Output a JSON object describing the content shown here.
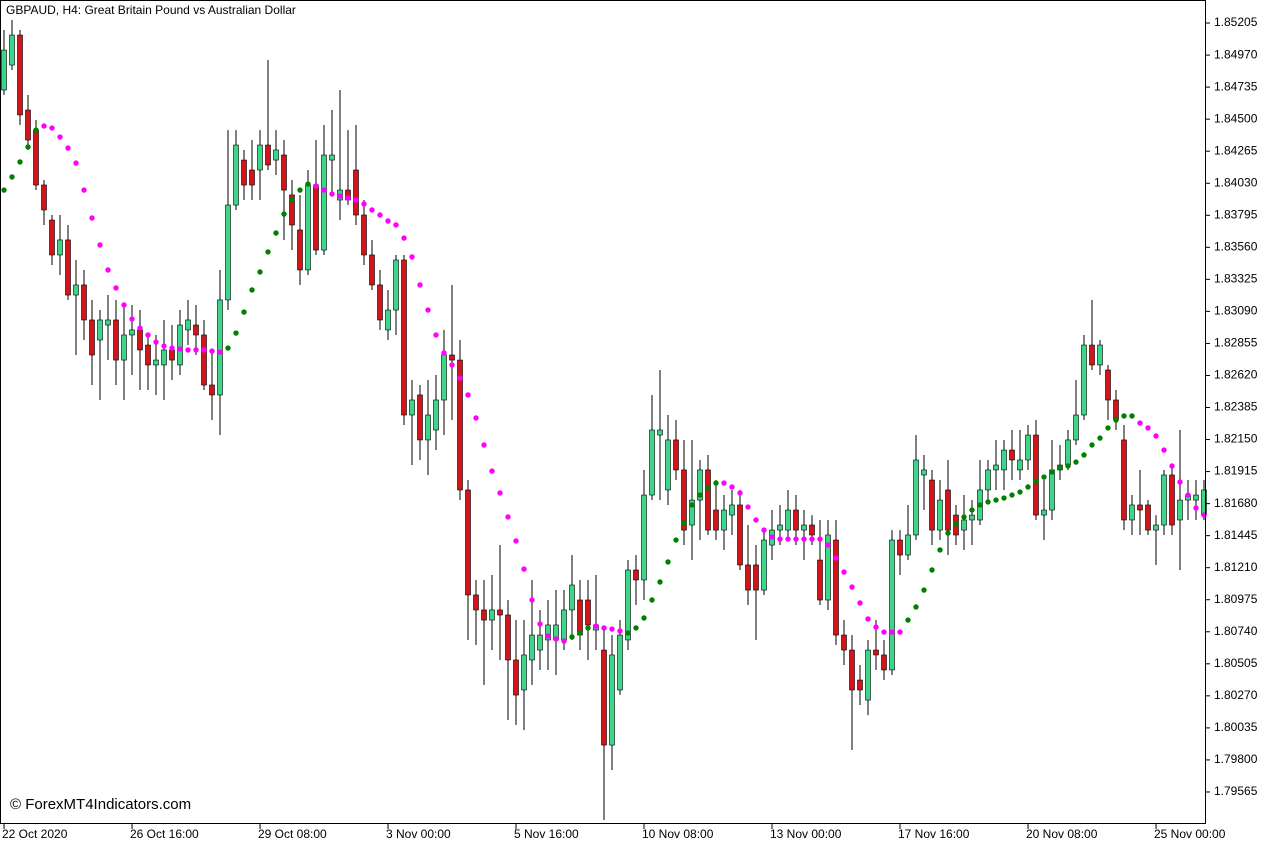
{
  "chart_data": {
    "type": "candlestick",
    "title": "GBPAUD, H4:  Great Britain Pound vs Australian Dollar",
    "watermark": "© ForexMT4Indicators.com",
    "up_color": "#3bd68a",
    "down_color": "#d4141a",
    "grid": false,
    "ylim": [
      1.7933,
      1.85352
    ],
    "yticks": [
      1.85205,
      {
        "value": 1.8497,
        "label": "1.84970"
      },
      1.84735,
      {
        "value": 1.845,
        "label": "1.84500"
      },
      1.84265,
      {
        "value": 1.8403,
        "label": "1.84030"
      },
      1.83795,
      {
        "value": 1.8356,
        "label": "1.83560"
      },
      1.83325,
      {
        "value": 1.8309,
        "label": "1.83090"
      },
      1.82855,
      {
        "value": 1.8262,
        "label": "1.82620"
      },
      1.82385,
      {
        "value": 1.8215,
        "label": "1.82150"
      },
      1.81915,
      {
        "value": 1.8168,
        "label": "1.81680"
      },
      1.81445,
      {
        "value": 1.8121,
        "label": "1.81210"
      },
      1.80975,
      {
        "value": 1.8074,
        "label": "1.80740"
      },
      1.80505,
      {
        "value": 1.8027,
        "label": "1.80270"
      },
      1.80035,
      {
        "value": 1.798,
        "label": "1.79800"
      },
      1.79565
    ],
    "categories": [
      "22 Oct 2020",
      null,
      null,
      null,
      null,
      null,
      null,
      null,
      null,
      null,
      null,
      null,
      null,
      null,
      null,
      null,
      "26 Oct 16:00",
      null,
      null,
      null,
      null,
      null,
      null,
      null,
      null,
      null,
      null,
      null,
      null,
      null,
      null,
      null,
      "29 Oct 08:00",
      null,
      null,
      null,
      null,
      null,
      null,
      null,
      null,
      null,
      null,
      null,
      null,
      null,
      null,
      null,
      "3 Nov 00:00",
      null,
      null,
      null,
      null,
      null,
      null,
      null,
      null,
      null,
      null,
      null,
      null,
      null,
      null,
      null,
      "5 Nov 16:00",
      null,
      null,
      null,
      null,
      null,
      null,
      null,
      null,
      null,
      null,
      null,
      null,
      null,
      null,
      null,
      "10 Nov 08:00",
      null,
      null,
      null,
      null,
      null,
      null,
      null,
      null,
      null,
      null,
      null,
      null,
      null,
      null,
      null,
      "13 Nov 00:00",
      null,
      null,
      null,
      null,
      null,
      null,
      null,
      null,
      null,
      null,
      null,
      null,
      null,
      null,
      null,
      "17 Nov 16:00",
      null,
      null,
      null,
      null,
      null,
      null,
      null,
      null,
      null,
      null,
      null,
      null,
      null,
      null,
      null,
      "20 Nov 08:00",
      null,
      null,
      null,
      null,
      null,
      null,
      null,
      null,
      null,
      null,
      null,
      null,
      null,
      null,
      null,
      "25 Nov 00:00",
      null,
      null,
      null,
      null,
      null,
      null
    ],
    "open": [
      1.84714,
      1.84897,
      1.85117,
      1.84567,
      1.8442,
      1.84017,
      1.8376,
      1.83504,
      1.83614,
      1.8321,
      1.83284,
      1.83027,
      1.8288,
      1.8299,
      1.83027,
      1.82733,
      1.82917,
      1.82954,
      1.82843,
      1.82697,
      1.82697,
      1.82807,
      1.82697,
      1.82954,
      1.8299,
      1.82917,
      1.8255,
      1.82477,
      1.83174,
      1.8387,
      1.842,
      1.84127,
      1.84127,
      1.8431,
      1.842,
      1.84237,
      1.83944,
      1.83687,
      1.83394,
      1.84017,
      1.8354,
      1.842,
      1.83907,
      1.8398,
      1.84127,
      1.83797,
      1.83504,
      1.83284,
      1.82954,
      1.831,
      1.83467,
      1.8233,
      1.82477,
      1.82147,
      1.8222,
      1.8244,
      1.8277,
      1.82733,
      1.8178,
      1.8101,
      1.809,
      1.80826,
      1.809,
      1.80863,
      1.80533,
      1.80313,
      1.80533,
      1.80606,
      1.8068,
      1.8068,
      1.8068,
      1.809,
      1.80973,
      1.80973,
      1.80753,
      1.80606,
      1.79909,
      1.80313,
      1.8068,
      1.81193,
      1.8112,
      1.81743,
      1.82183,
      1.8178,
      1.82147,
      1.81927,
      1.81523,
      1.81706,
      1.81927,
      1.81633,
      1.81486,
      1.81596,
      1.8167,
      1.8123,
      1.8123,
      1.81046,
      1.81376,
      1.81486,
      1.81486,
      1.81633,
      1.81486,
      1.81523,
      1.81266,
      1.80973,
      1.81413,
      1.80716,
      1.80606,
      1.80386,
      1.80239,
      1.80606,
      1.8057,
      1.8046,
      1.81413,
      1.81303,
      1.8145,
      1.8189,
      1.81853,
      1.81486,
      1.8178,
      1.81596,
      1.81486,
      1.8156,
      1.8156,
      1.8178,
      1.81927,
      1.81927,
      1.82073,
      1.81927,
      1.82,
      1.82183,
      1.81596,
      1.81633,
      1.81927,
      1.81963,
      1.82147,
      1.8233,
      1.82843,
      1.82697,
      1.8266,
      1.8244,
      1.82147,
      1.8156,
      1.8167,
      1.8167,
      1.81486,
      1.81523,
      1.8189,
      1.8156,
      1.81706,
      1.81706,
      1.81596
    ],
    "high": [
      1.85154,
      1.85227,
      1.85154,
      1.84677,
      1.84494,
      1.84054,
      1.83797,
      1.83797,
      1.83724,
      1.83467,
      1.83394,
      1.83174,
      1.831,
      1.8321,
      1.83174,
      1.83137,
      1.83137,
      1.831,
      1.82917,
      1.82917,
      1.83027,
      1.8299,
      1.831,
      1.83174,
      1.83137,
      1.83027,
      1.82807,
      1.83394,
      1.8442,
      1.8442,
      1.84274,
      1.84347,
      1.8442,
      1.84934,
      1.8442,
      1.84347,
      1.84054,
      1.83944,
      1.84127,
      1.84347,
      1.84457,
      1.84567,
      1.84714,
      1.8442,
      1.84457,
      1.83907,
      1.83614,
      1.83394,
      1.83247,
      1.83504,
      1.83504,
      1.82587,
      1.8255,
      1.82587,
      1.82623,
      1.82954,
      1.83284,
      1.8288,
      1.81853,
      1.8112,
      1.8112,
      1.81156,
      1.81376,
      1.80973,
      1.80826,
      1.80826,
      1.8112,
      1.809,
      1.80973,
      1.81046,
      1.81046,
      1.81303,
      1.8112,
      1.8112,
      1.81156,
      1.80753,
      1.80716,
      1.80826,
      1.81266,
      1.81303,
      1.81927,
      1.82477,
      1.8266,
      1.8233,
      1.82293,
      1.82147,
      1.82147,
      1.82,
      1.82037,
      1.81853,
      1.81743,
      1.8178,
      1.8178,
      1.81523,
      1.81376,
      1.81486,
      1.81633,
      1.8167,
      1.8178,
      1.81743,
      1.81633,
      1.81596,
      1.8156,
      1.8156,
      1.8156,
      1.80826,
      1.80716,
      1.80496,
      1.8068,
      1.80826,
      1.8068,
      1.81486,
      1.81486,
      1.8167,
      1.82183,
      1.82037,
      1.81927,
      1.81853,
      1.82,
      1.8167,
      1.81743,
      1.81706,
      1.82,
      1.82,
      1.82147,
      1.82147,
      1.8222,
      1.8222,
      1.82257,
      1.82293,
      1.81853,
      1.82147,
      1.8211,
      1.8222,
      1.82587,
      1.82917,
      1.83174,
      1.8288,
      1.82697,
      1.82513,
      1.82257,
      1.81743,
      1.81927,
      1.81706,
      1.81596,
      1.81927,
      1.81963,
      1.8222,
      1.81853,
      1.81853,
      1.81853
    ],
    "low": [
      1.84677,
      1.84861,
      1.84457,
      1.84274,
      1.8398,
      1.83724,
      1.8343,
      1.83357,
      1.83174,
      1.8277,
      1.8288,
      1.8255,
      1.8244,
      1.82733,
      1.8255,
      1.8244,
      1.82623,
      1.82513,
      1.82513,
      1.82477,
      1.8244,
      1.82587,
      1.82623,
      1.82843,
      1.8277,
      1.82513,
      1.82293,
      1.82183,
      1.831,
      1.83834,
      1.83907,
      1.83907,
      1.83907,
      1.84127,
      1.8409,
      1.83614,
      1.8354,
      1.83284,
      1.83357,
      1.83504,
      1.83504,
      1.83944,
      1.8376,
      1.8387,
      1.83724,
      1.8343,
      1.83247,
      1.82954,
      1.8288,
      1.82917,
      1.82257,
      1.81963,
      1.82,
      1.8189,
      1.82073,
      1.82183,
      1.82293,
      1.81706,
      1.8068,
      1.80643,
      1.8035,
      1.80606,
      1.80533,
      1.80093,
      1.80056,
      1.80019,
      1.8035,
      1.8046,
      1.8046,
      1.80423,
      1.80606,
      1.8068,
      1.80606,
      1.80533,
      1.80606,
      1.79359,
      1.79726,
      1.80276,
      1.80606,
      1.80936,
      1.80973,
      1.81706,
      1.81706,
      1.8167,
      1.81853,
      1.81376,
      1.81266,
      1.81413,
      1.8145,
      1.81413,
      1.8134,
      1.8145,
      1.81193,
      1.80936,
      1.8068,
      1.8101,
      1.81266,
      1.81376,
      1.81413,
      1.81376,
      1.81266,
      1.81376,
      1.80936,
      1.809,
      1.80643,
      1.80496,
      1.79873,
      1.80203,
      1.80129,
      1.8046,
      1.80386,
      1.80423,
      1.81156,
      1.81266,
      1.81413,
      1.81633,
      1.81376,
      1.81413,
      1.81303,
      1.81376,
      1.8134,
      1.81376,
      1.81523,
      1.81706,
      1.8178,
      1.8178,
      1.81853,
      1.81853,
      1.81927,
      1.8156,
      1.81413,
      1.8156,
      1.81853,
      1.81927,
      1.8211,
      1.82293,
      1.8266,
      1.82623,
      1.82293,
      1.8222,
      1.81486,
      1.8145,
      1.8145,
      1.8145,
      1.8123,
      1.8145,
      1.8145,
      1.81193,
      1.8156,
      1.8156,
      1.8156
    ],
    "close": [
      1.85007,
      1.85117,
      1.84531,
      1.84347,
      1.84017,
      1.83834,
      1.83504,
      1.83614,
      1.8321,
      1.83284,
      1.83027,
      1.8277,
      1.83027,
      1.83027,
      1.82733,
      1.82917,
      1.82954,
      1.82807,
      1.82697,
      1.82733,
      1.82807,
      1.82733,
      1.8299,
      1.83027,
      1.82917,
      1.8255,
      1.82477,
      1.83174,
      1.8387,
      1.8431,
      1.84017,
      1.84017,
      1.8431,
      1.84164,
      1.84274,
      1.8398,
      1.83724,
      1.83394,
      1.84017,
      1.8354,
      1.84237,
      1.84237,
      1.8398,
      1.83907,
      1.83797,
      1.83504,
      1.83284,
      1.83027,
      1.831,
      1.83467,
      1.8233,
      1.8244,
      1.82147,
      1.8233,
      1.8244,
      1.8277,
      1.82733,
      1.8178,
      1.8101,
      1.809,
      1.80826,
      1.809,
      1.80863,
      1.80533,
      1.80276,
      1.8057,
      1.80716,
      1.80716,
      1.8079,
      1.8079,
      1.809,
      1.81083,
      1.80716,
      1.8079,
      1.8079,
      1.79909,
      1.8057,
      1.80716,
      1.81193,
      1.8112,
      1.81743,
      1.8222,
      1.8222,
      1.82147,
      1.81927,
      1.81486,
      1.81706,
      1.81927,
      1.81486,
      1.81486,
      1.81633,
      1.8167,
      1.8123,
      1.81046,
      1.81046,
      1.81413,
      1.81486,
      1.81523,
      1.81633,
      1.81486,
      1.81523,
      1.8145,
      1.80973,
      1.8145,
      1.80716,
      1.80606,
      1.80313,
      1.80313,
      1.80606,
      1.8057,
      1.8046,
      1.81413,
      1.81303,
      1.8145,
      1.82,
      1.81927,
      1.81486,
      1.81706,
      1.81486,
      1.8145,
      1.8156,
      1.81596,
      1.8178,
      1.81927,
      1.81963,
      1.82073,
      1.82,
      1.82,
      1.82183,
      1.81596,
      1.81633,
      1.81927,
      1.81963,
      1.82147,
      1.8233,
      1.82843,
      1.82697,
      1.82843,
      1.8244,
      1.82293,
      1.8156,
      1.8167,
      1.81633,
      1.81486,
      1.81523,
      1.8189,
      1.81523,
      1.81706,
      1.81743,
      1.81743,
      1.8178
    ],
    "sar": [
      {
        "color": "#008000",
        "values": [
          1.8398,
          1.84076,
          1.84186,
          1.84296,
          1.8442,
          null,
          null,
          null,
          null,
          null,
          null,
          null,
          null,
          null,
          null,
          null,
          null,
          null,
          null,
          null,
          null,
          null,
          null,
          null,
          null,
          null,
          null,
          null,
          1.82821,
          1.82931,
          1.83085,
          1.83247,
          1.83379,
          1.83526,
          1.83665,
          1.83804,
          1.83907,
          1.8398,
          1.84024,
          null,
          null,
          null,
          null,
          null,
          null,
          null,
          null,
          null,
          null,
          null,
          null,
          null,
          null,
          null,
          null,
          null,
          null,
          null,
          null,
          null,
          null,
          null,
          null,
          null,
          null,
          null,
          null,
          null,
          null,
          null,
          null,
          1.80702,
          1.80731,
          1.80768,
          null,
          null,
          null,
          null,
          1.80731,
          1.80768,
          1.80841,
          1.80973,
          1.81105,
          1.81252,
          1.81413,
          1.81538,
          1.8167,
          1.81743,
          1.81795,
          1.81831,
          null,
          null,
          null,
          null,
          null,
          null,
          null,
          null,
          null,
          null,
          null,
          null,
          null,
          null,
          null,
          null,
          null,
          null,
          null,
          null,
          null,
          null,
          null,
          1.80826,
          1.80922,
          1.81046,
          1.81193,
          1.8134,
          1.81464,
          1.8153,
          1.81582,
          1.81633,
          1.8167,
          1.81692,
          1.81706,
          1.81721,
          1.81743,
          1.81765,
          1.81802,
          1.81846,
          1.81875,
          1.81912,
          1.81941,
          1.81956,
          1.81985,
          1.82037,
          1.8211,
          1.82161,
          1.82235,
          1.82293,
          1.82323,
          1.82323,
          null,
          null,
          null,
          null,
          null,
          null,
          null,
          null,
          null
        ]
      },
      {
        "color": "#ff00ff",
        "values": [
          null,
          null,
          null,
          null,
          null,
          1.8445,
          1.84435,
          1.84369,
          1.84288,
          1.84178,
          1.8398,
          1.83775,
          1.83577,
          1.83394,
          1.83262,
          1.83137,
          1.83034,
          1.82968,
          1.82917,
          1.82865,
          1.82836,
          1.82821,
          1.82814,
          1.82807,
          1.82807,
          1.82807,
          1.82799,
          1.82792,
          null,
          null,
          null,
          null,
          null,
          null,
          null,
          null,
          null,
          null,
          null,
          1.8401,
          1.8398,
          1.83951,
          1.83936,
          1.83922,
          1.83907,
          1.83878,
          1.83834,
          1.83797,
          1.83753,
          1.83724,
          1.83628,
          1.83489,
          1.83284,
          1.831,
          1.82917,
          1.82785,
          1.82697,
          1.82601,
          1.82477,
          1.82308,
          1.8211,
          1.81919,
          1.81758,
          1.81582,
          1.81406,
          1.812,
          1.80973,
          1.80797,
          1.80709,
          1.80687,
          1.80672,
          null,
          null,
          null,
          1.80782,
          1.80768,
          1.8076,
          1.80746,
          null,
          null,
          null,
          null,
          null,
          null,
          null,
          null,
          null,
          null,
          null,
          null,
          1.81831,
          1.81802,
          1.81758,
          1.81655,
          1.8156,
          1.81486,
          1.81435,
          1.8142,
          1.8142,
          1.8142,
          1.8142,
          1.8142,
          1.8142,
          1.81376,
          1.81281,
          1.81178,
          1.81068,
          1.80951,
          1.80834,
          1.80775,
          1.80738,
          1.80738,
          1.80738,
          null,
          null,
          null,
          null,
          null,
          null,
          null,
          null,
          null,
          null,
          null,
          null,
          null,
          null,
          null,
          null,
          null,
          null,
          null,
          null,
          null,
          null,
          null,
          null,
          null,
          null,
          null,
          null,
          null,
          1.82271,
          1.82235,
          1.82176,
          1.82073,
          1.81956,
          1.81839,
          1.81743,
          1.81648,
          1.81596
        ]
      }
    ]
  }
}
